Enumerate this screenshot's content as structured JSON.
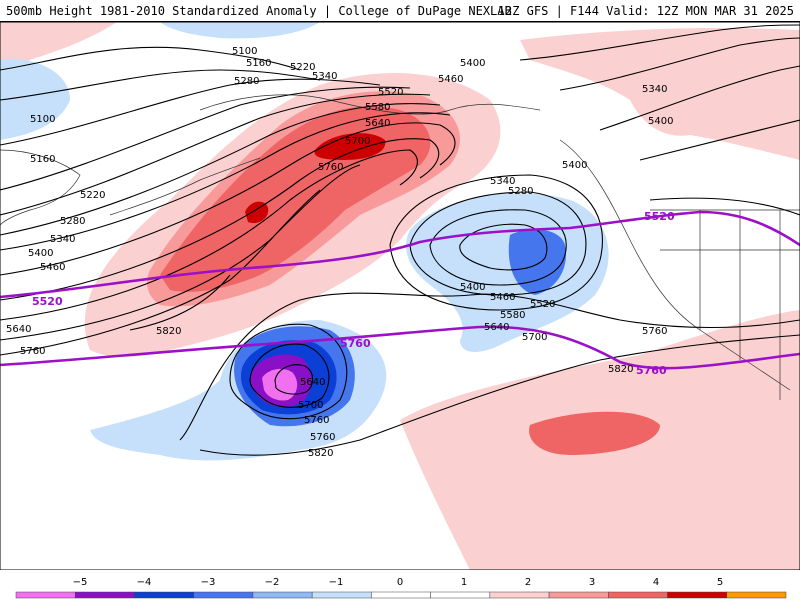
{
  "header": {
    "title_left": "500mb Height 1981-2010 Standardized Anomaly | College of DuPage NEXLAB",
    "title_right": "12Z GFS | F144 Valid: 12Z MON MAR 31 2025"
  },
  "colors": {
    "background": "#ffffff",
    "contour": "#000000",
    "threshold_line": "#9b10c8",
    "anomaly_pos_1": "#fbd0d0",
    "anomaly_pos_2": "#f89a9a",
    "anomaly_pos_3": "#ef6464",
    "anomaly_pos_4": "#cc0000",
    "anomaly_neg_1": "#c6e0fb",
    "anomaly_neg_2": "#8fb8f5",
    "anomaly_neg_3": "#4676ee",
    "anomaly_neg_4": "#0b3fd6",
    "anomaly_neg_5": "#8a10c8",
    "anomaly_neg_6": "#f070f0"
  },
  "contour_labels": [
    "5100",
    "5160",
    "5220",
    "5280",
    "5340",
    "5400",
    "5460",
    "5520",
    "5580",
    "5640",
    "5700",
    "5760",
    "5820",
    "5340",
    "5400",
    "5400",
    "5100",
    "5160",
    "5220",
    "5280",
    "5340",
    "5400",
    "5460",
    "5640",
    "5760",
    "5340",
    "5280",
    "5400",
    "5460",
    "5520",
    "5580",
    "5640",
    "5700",
    "5760",
    "5820",
    "5760",
    "5640",
    "5700",
    "5760",
    "5820"
  ],
  "threshold_labels": [
    "5520",
    "5520",
    "5760",
    "5760"
  ],
  "colorbar": {
    "ticks": [
      "−5",
      "−4",
      "−3",
      "−2",
      "−1",
      "0",
      "1",
      "2",
      "3",
      "4",
      "5"
    ],
    "colors": [
      "#f070f0",
      "#8a10c8",
      "#0b3fd6",
      "#4676ee",
      "#8fb8f5",
      "#c6e0fb",
      "#ffffff",
      "#ffffff",
      "#fbd0d0",
      "#f89a9a",
      "#ef6464",
      "#cc0000",
      "#ff9900"
    ]
  }
}
